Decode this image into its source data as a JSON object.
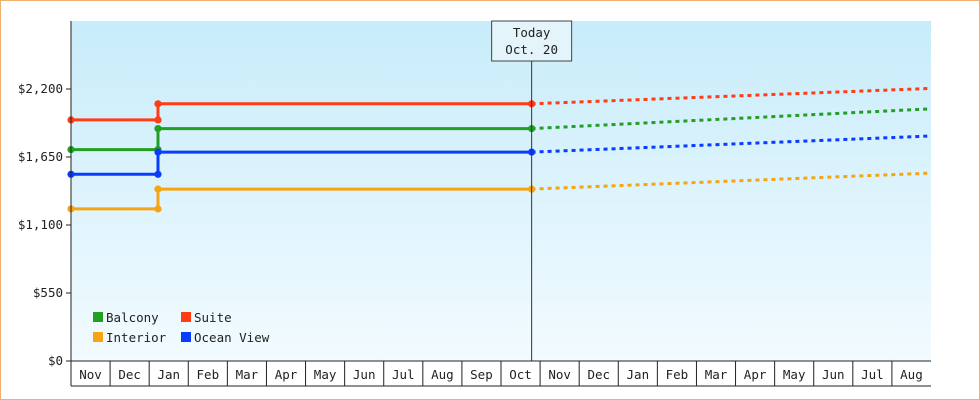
{
  "chart_data": {
    "type": "line",
    "title": "",
    "xlabel": "",
    "ylabel": "",
    "ylim": [
      0,
      2750
    ],
    "y_ticks": [
      {
        "value": 0,
        "label": "$0"
      },
      {
        "value": 550,
        "label": "$550"
      },
      {
        "value": 1100,
        "label": "$1,100"
      },
      {
        "value": 1650,
        "label": "$1,650"
      },
      {
        "value": 2200,
        "label": "$2,200"
      }
    ],
    "months": [
      "Nov",
      "Dec",
      "Jan",
      "Feb",
      "Mar",
      "Apr",
      "May",
      "Jun",
      "Jul",
      "Aug",
      "Sep",
      "Oct",
      "Nov",
      "Dec",
      "Jan",
      "Feb",
      "Mar",
      "Apr",
      "May",
      "Jun",
      "Jul",
      "Aug"
    ],
    "grid": false,
    "legend_position": "bottom-left",
    "today_marker": {
      "line1": "Today",
      "line2": "Oct. 20",
      "x": 11.65
    },
    "series": [
      {
        "name": "Balcony",
        "color": "#22a022",
        "points": [
          [
            0,
            1710
          ],
          [
            2.2,
            1710
          ],
          [
            2.2,
            1880
          ],
          [
            11.65,
            1880
          ]
        ],
        "forecast": [
          [
            11.65,
            1880
          ],
          [
            21.75,
            2040
          ]
        ]
      },
      {
        "name": "Suite",
        "color": "#ff3c14",
        "points": [
          [
            0,
            1950
          ],
          [
            2.2,
            1950
          ],
          [
            2.2,
            2080
          ],
          [
            11.65,
            2080
          ]
        ],
        "forecast": [
          [
            11.65,
            2080
          ],
          [
            21.75,
            2205
          ]
        ]
      },
      {
        "name": "Interior",
        "color": "#f5a514",
        "points": [
          [
            0,
            1230
          ],
          [
            2.2,
            1230
          ],
          [
            2.2,
            1390
          ],
          [
            11.65,
            1390
          ]
        ],
        "forecast": [
          [
            11.65,
            1390
          ],
          [
            21.75,
            1520
          ]
        ]
      },
      {
        "name": "Ocean View",
        "color": "#0a3cff",
        "points": [
          [
            0,
            1510
          ],
          [
            2.2,
            1510
          ],
          [
            2.2,
            1690
          ],
          [
            11.65,
            1690
          ]
        ],
        "forecast": [
          [
            11.65,
            1690
          ],
          [
            21.75,
            1820
          ]
        ]
      }
    ]
  }
}
